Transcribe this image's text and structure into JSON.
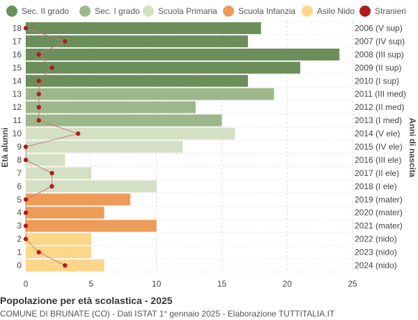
{
  "chart_data": {
    "type": "bar",
    "orientation": "horizontal",
    "title": "Popolazione per età scolastica - 2025",
    "subtitle": "COMUNE DI BRUNATE (CO) - Dati ISTAT 1° gennaio 2025 - Elaborazione TUTTITALIA.IT",
    "ylabel_left": "Età alunni",
    "ylabel_right": "Anni di nascita",
    "xlim": [
      0,
      25
    ],
    "xticks": [
      0,
      5,
      10,
      15,
      20,
      25
    ],
    "grid": true,
    "legend_position": "top",
    "legend": [
      {
        "name": "Sec. II grado",
        "color": "#6b8e5a"
      },
      {
        "name": "Sec. I grado",
        "color": "#9cb88a"
      },
      {
        "name": "Scuola Primaria",
        "color": "#d3e0c4"
      },
      {
        "name": "Scuola Infanzia",
        "color": "#ec9c58"
      },
      {
        "name": "Asilo Nido",
        "color": "#fdd68a"
      },
      {
        "name": "Stranieri",
        "color": "#b01c1c"
      }
    ],
    "rows": [
      {
        "age": "18",
        "birth": "2006 (V sup)",
        "value": 18,
        "stranieri": 0,
        "group": 0
      },
      {
        "age": "17",
        "birth": "2007 (IV sup)",
        "value": 17,
        "stranieri": 3,
        "group": 0
      },
      {
        "age": "16",
        "birth": "2008 (III sup)",
        "value": 24,
        "stranieri": 1,
        "group": 0
      },
      {
        "age": "15",
        "birth": "2009 (II sup)",
        "value": 21,
        "stranieri": 2,
        "group": 0
      },
      {
        "age": "14",
        "birth": "2010 (I sup)",
        "value": 17,
        "stranieri": 1,
        "group": 0
      },
      {
        "age": "13",
        "birth": "2011 (III med)",
        "value": 19,
        "stranieri": 1,
        "group": 1
      },
      {
        "age": "12",
        "birth": "2012 (II med)",
        "value": 13,
        "stranieri": 1,
        "group": 1
      },
      {
        "age": "11",
        "birth": "2013 (I med)",
        "value": 15,
        "stranieri": 1,
        "group": 1
      },
      {
        "age": "10",
        "birth": "2014 (V ele)",
        "value": 16,
        "stranieri": 4,
        "group": 2
      },
      {
        "age": "9",
        "birth": "2015 (IV ele)",
        "value": 12,
        "stranieri": 0,
        "group": 2
      },
      {
        "age": "8",
        "birth": "2016 (III ele)",
        "value": 3,
        "stranieri": 0,
        "group": 2
      },
      {
        "age": "7",
        "birth": "2017 (II ele)",
        "value": 5,
        "stranieri": 2,
        "group": 2
      },
      {
        "age": "6",
        "birth": "2018 (I ele)",
        "value": 10,
        "stranieri": 2,
        "group": 2
      },
      {
        "age": "5",
        "birth": "2019 (mater)",
        "value": 8,
        "stranieri": 0,
        "group": 3
      },
      {
        "age": "4",
        "birth": "2020 (mater)",
        "value": 6,
        "stranieri": 0,
        "group": 3
      },
      {
        "age": "3",
        "birth": "2021 (mater)",
        "value": 10,
        "stranieri": 0,
        "group": 3
      },
      {
        "age": "2",
        "birth": "2022 (nido)",
        "value": 5,
        "stranieri": 0,
        "group": 4
      },
      {
        "age": "1",
        "birth": "2023 (nido)",
        "value": 5,
        "stranieri": 1,
        "group": 4
      },
      {
        "age": "0",
        "birth": "2024 (nido)",
        "value": 6,
        "stranieri": 3,
        "group": 4
      }
    ]
  }
}
